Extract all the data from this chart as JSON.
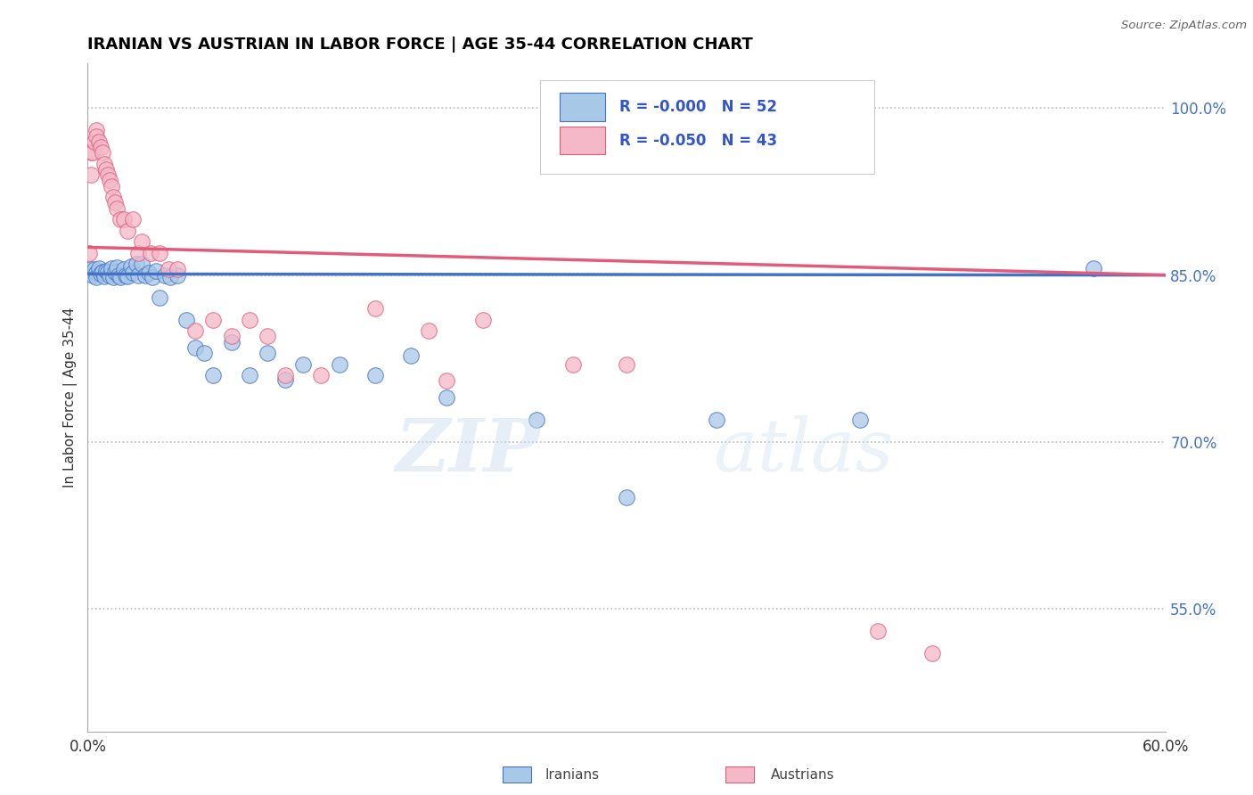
{
  "title": "IRANIAN VS AUSTRIAN IN LABOR FORCE | AGE 35-44 CORRELATION CHART",
  "source": "Source: ZipAtlas.com",
  "ylabel": "In Labor Force | Age 35-44",
  "xlim": [
    0.0,
    0.6
  ],
  "ylim": [
    0.44,
    1.04
  ],
  "xtick_vals": [
    0.0,
    0.1,
    0.2,
    0.3,
    0.4,
    0.5,
    0.6
  ],
  "xticklabels": [
    "0.0%",
    "",
    "",
    "",
    "",
    "",
    "60.0%"
  ],
  "yticks_right": [
    1.0,
    0.85,
    0.7,
    0.55
  ],
  "ytick_labels_right": [
    "100.0%",
    "85.0%",
    "70.0%",
    "55.0%"
  ],
  "legend_iranian": "Iranians",
  "legend_austrian": "Austrians",
  "r_iranian": "-0.000",
  "n_iranian": "52",
  "r_austrian": "-0.050",
  "n_austrian": "43",
  "color_iranian": "#a8c8e8",
  "color_austrian": "#f4b8c8",
  "color_line_iranian": "#4472c4",
  "color_line_austrian": "#e05c7a",
  "color_r_text": "#3355cc",
  "iranian_x": [
    0.002,
    0.003,
    0.004,
    0.005,
    0.005,
    0.006,
    0.007,
    0.008,
    0.009,
    0.01,
    0.011,
    0.012,
    0.013,
    0.014,
    0.015,
    0.016,
    0.017,
    0.018,
    0.02,
    0.021,
    0.022,
    0.024,
    0.025,
    0.027,
    0.028,
    0.03,
    0.032,
    0.034,
    0.036,
    0.038,
    0.04,
    0.043,
    0.046,
    0.05,
    0.055,
    0.06,
    0.065,
    0.07,
    0.08,
    0.09,
    0.1,
    0.11,
    0.12,
    0.14,
    0.16,
    0.18,
    0.2,
    0.25,
    0.3,
    0.35,
    0.43,
    0.56
  ],
  "iranian_y": [
    0.855,
    0.85,
    0.855,
    0.852,
    0.848,
    0.856,
    0.851,
    0.853,
    0.849,
    0.854,
    0.853,
    0.85,
    0.856,
    0.848,
    0.853,
    0.857,
    0.85,
    0.848,
    0.855,
    0.85,
    0.849,
    0.858,
    0.852,
    0.86,
    0.85,
    0.86,
    0.85,
    0.852,
    0.848,
    0.854,
    0.83,
    0.85,
    0.848,
    0.85,
    0.81,
    0.785,
    0.78,
    0.76,
    0.79,
    0.76,
    0.78,
    0.756,
    0.77,
    0.77,
    0.76,
    0.778,
    0.74,
    0.72,
    0.65,
    0.72,
    0.72,
    0.856
  ],
  "austrian_x": [
    0.001,
    0.002,
    0.002,
    0.003,
    0.004,
    0.005,
    0.005,
    0.006,
    0.007,
    0.008,
    0.009,
    0.01,
    0.011,
    0.012,
    0.013,
    0.014,
    0.015,
    0.016,
    0.018,
    0.02,
    0.022,
    0.025,
    0.028,
    0.03,
    0.035,
    0.04,
    0.045,
    0.05,
    0.06,
    0.07,
    0.08,
    0.09,
    0.1,
    0.11,
    0.13,
    0.16,
    0.19,
    0.22,
    0.27,
    0.3,
    0.2,
    0.44,
    0.47
  ],
  "austrian_y": [
    0.87,
    0.94,
    0.96,
    0.96,
    0.97,
    0.98,
    0.975,
    0.97,
    0.965,
    0.96,
    0.95,
    0.945,
    0.94,
    0.935,
    0.93,
    0.92,
    0.915,
    0.91,
    0.9,
    0.9,
    0.89,
    0.9,
    0.87,
    0.88,
    0.87,
    0.87,
    0.855,
    0.855,
    0.8,
    0.81,
    0.795,
    0.81,
    0.795,
    0.76,
    0.76,
    0.82,
    0.8,
    0.81,
    0.77,
    0.77,
    0.755,
    0.53,
    0.51
  ],
  "iranian_line_x": [
    0.0,
    0.6
  ],
  "iranian_line_y": [
    0.851,
    0.85
  ],
  "austrian_line_x": [
    0.0,
    0.6
  ],
  "austrian_line_y": [
    0.875,
    0.85
  ]
}
